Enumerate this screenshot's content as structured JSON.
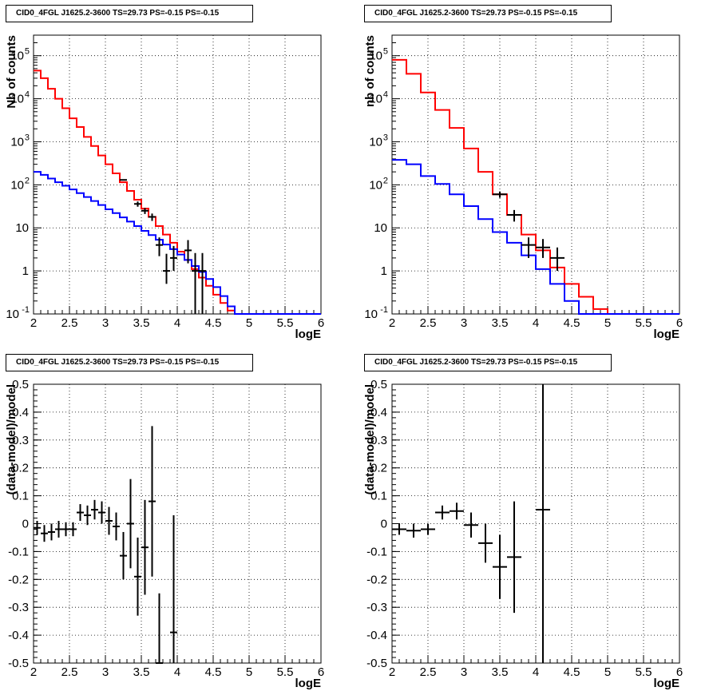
{
  "chart_data": [
    {
      "type": "line",
      "title": "CID0_4FGL J1625.2-3600 TS=29.73 PS=-0.15 PS=-0.15",
      "xlabel": "logE",
      "ylabel": "Nb of counts",
      "xlim": [
        2,
        6
      ],
      "ylim": [
        0.1,
        300000
      ],
      "yscale": "log",
      "grid": true,
      "x_ticks": [
        "2",
        "2.5",
        "3",
        "3.5",
        "4",
        "4.5",
        "5",
        "5.5",
        "6"
      ],
      "y_ticks": [
        {
          "value": 0.1,
          "base": "10",
          "exp": "-1"
        },
        {
          "value": 1,
          "base": "1",
          "exp": ""
        },
        {
          "value": 10,
          "base": "10",
          "exp": ""
        },
        {
          "value": 100,
          "base": "10",
          "exp": "2"
        },
        {
          "value": 1000,
          "base": "10",
          "exp": "3"
        },
        {
          "value": 10000,
          "base": "10",
          "exp": "4"
        },
        {
          "value": 100000,
          "base": "10",
          "exp": "5"
        }
      ],
      "series": [
        {
          "color": "#ff0000",
          "style": "step",
          "bin_edges": [
            2.0,
            2.1,
            2.2,
            2.3,
            2.4,
            2.5,
            2.6,
            2.7,
            2.8,
            2.9,
            3.0,
            3.1,
            3.2,
            3.3,
            3.4,
            3.5,
            3.6,
            3.7,
            3.8,
            3.9,
            4.0,
            4.1,
            4.2,
            4.3,
            4.4,
            4.5,
            4.6,
            4.7,
            4.8,
            4.9,
            5.0,
            5.1,
            5.2,
            5.3,
            5.4,
            5.5,
            5.6,
            5.7,
            5.8,
            5.9,
            6.0
          ],
          "values": [
            45000,
            30000,
            17000,
            10000,
            6000,
            3500,
            2200,
            1300,
            800,
            480,
            300,
            185,
            115,
            72,
            45,
            28,
            18,
            11,
            7,
            4.5,
            2.8,
            1.8,
            1.1,
            0.7,
            0.45,
            0.28,
            0.18,
            0.12,
            0.1,
            0.1,
            0.1,
            0.1,
            0.1,
            0.1,
            0.1,
            0.1,
            0.1,
            0.1,
            0.1,
            0.1
          ]
        },
        {
          "color": "#0000ff",
          "style": "step",
          "bin_edges": [
            2.0,
            2.1,
            2.2,
            2.3,
            2.4,
            2.5,
            2.6,
            2.7,
            2.8,
            2.9,
            3.0,
            3.1,
            3.2,
            3.3,
            3.4,
            3.5,
            3.6,
            3.7,
            3.8,
            3.9,
            4.0,
            4.1,
            4.2,
            4.3,
            4.4,
            4.5,
            4.6,
            4.7,
            4.8,
            4.9,
            5.0,
            5.1,
            5.2,
            5.3,
            5.4,
            5.5,
            5.6,
            5.7,
            5.8,
            5.9,
            6.0
          ],
          "values": [
            200,
            170,
            140,
            115,
            95,
            78,
            64,
            52,
            42,
            34,
            27,
            22,
            17.5,
            14,
            11,
            8.5,
            6.8,
            5.3,
            4.1,
            3.2,
            2.4,
            1.8,
            1.3,
            0.95,
            0.65,
            0.42,
            0.26,
            0.15,
            0.1,
            0.1,
            0.1,
            0.1,
            0.1,
            0.1,
            0.1,
            0.1,
            0.1,
            0.1,
            0.1,
            0.1
          ]
        },
        {
          "color": "#000000",
          "style": "errorbar",
          "points": [
            [
              3.25,
              130,
              1.3,
              1.2,
              0.05
            ],
            [
              3.45,
              36,
              5,
              5,
              0.05
            ],
            [
              3.55,
              25,
              4,
              4,
              0.05
            ],
            [
              3.65,
              18,
              3.5,
              3.5,
              0.05
            ],
            [
              3.75,
              4,
              1.8,
              2,
              0.05
            ],
            [
              3.85,
              1,
              0.5,
              1.5,
              0.05
            ],
            [
              3.95,
              2,
              1,
              1.8,
              0.05
            ],
            [
              4.15,
              3,
              1.5,
              2.2,
              0.05
            ],
            [
              4.25,
              1,
              0.9,
              1.6,
              0.05
            ],
            [
              4.35,
              1,
              0.9,
              1.6,
              0.05
            ]
          ]
        }
      ]
    },
    {
      "type": "line",
      "title": "CID0_4FGL J1625.2-3600 TS=29.73 PS=-0.15 PS=-0.15",
      "xlabel": "logE",
      "ylabel": "nb of counts",
      "xlim": [
        2,
        6
      ],
      "ylim": [
        0.1,
        300000
      ],
      "yscale": "log",
      "grid": true,
      "x_ticks": [
        "2",
        "2.5",
        "3",
        "3.5",
        "4",
        "4.5",
        "5",
        "5.5",
        "6"
      ],
      "y_ticks": [
        {
          "value": 0.1,
          "base": "10",
          "exp": "-1"
        },
        {
          "value": 1,
          "base": "1",
          "exp": ""
        },
        {
          "value": 10,
          "base": "10",
          "exp": ""
        },
        {
          "value": 100,
          "base": "10",
          "exp": "2"
        },
        {
          "value": 1000,
          "base": "10",
          "exp": "3"
        },
        {
          "value": 10000,
          "base": "10",
          "exp": "4"
        },
        {
          "value": 100000,
          "base": "10",
          "exp": "5"
        }
      ],
      "series": [
        {
          "color": "#ff0000",
          "style": "step",
          "bin_edges": [
            2.0,
            2.2,
            2.4,
            2.6,
            2.8,
            3.0,
            3.2,
            3.4,
            3.6,
            3.8,
            4.0,
            4.2,
            4.4,
            4.6,
            4.8,
            5.0,
            5.2,
            5.4,
            5.6,
            5.8,
            6.0
          ],
          "values": [
            80000,
            38000,
            14000,
            5500,
            2100,
            700,
            200,
            60,
            20,
            7,
            3,
            1.2,
            0.5,
            0.25,
            0.13,
            0.1,
            0.1,
            0.1,
            0.1,
            0.1
          ]
        },
        {
          "color": "#0000ff",
          "style": "step",
          "bin_edges": [
            2.0,
            2.2,
            2.4,
            2.6,
            2.8,
            3.0,
            3.2,
            3.4,
            3.6,
            3.8,
            4.0,
            4.2,
            4.4,
            4.6,
            4.8,
            5.0,
            5.2,
            5.4,
            5.6,
            5.8,
            6.0
          ],
          "values": [
            380,
            300,
            160,
            105,
            60,
            32,
            16,
            8,
            4.5,
            2.3,
            1.1,
            0.5,
            0.2,
            0.1,
            0.1,
            0.1,
            0.1,
            0.1,
            0.1,
            0.1
          ]
        },
        {
          "color": "#000000",
          "style": "errorbar",
          "points": [
            [
              3.5,
              60,
              10,
              10,
              0.1
            ],
            [
              3.7,
              20,
              6,
              6,
              0.1
            ],
            [
              3.9,
              4,
              2,
              2,
              0.1
            ],
            [
              4.1,
              3.5,
              1.5,
              2,
              0.1
            ],
            [
              4.3,
              2,
              1,
              1.5,
              0.1
            ]
          ]
        }
      ]
    },
    {
      "type": "scatter",
      "title": "CID0_4FGL J1625.2-3600 TS=29.73 PS=-0.15 PS=-0.15",
      "xlabel": "logE",
      "ylabel": "(data-model)/model",
      "xlim": [
        2,
        6
      ],
      "ylim": [
        -0.5,
        0.5
      ],
      "grid": true,
      "x_ticks": [
        "2",
        "2.5",
        "3",
        "3.5",
        "4",
        "4.5",
        "5",
        "5.5",
        "6"
      ],
      "y_ticks": [
        "-0.5",
        "-0.4",
        "-0.3",
        "-0.2",
        "-0.1",
        "0",
        "0.1",
        "0.2",
        "0.3",
        "0.4",
        "0.5"
      ],
      "series": [
        {
          "color": "#000000",
          "style": "errorbar",
          "points": [
            [
              2.05,
              -0.015,
              0.025,
              0.025,
              0.05
            ],
            [
              2.15,
              -0.035,
              0.03,
              0.03,
              0.05
            ],
            [
              2.25,
              -0.03,
              0.03,
              0.03,
              0.05
            ],
            [
              2.35,
              -0.02,
              0.03,
              0.03,
              0.05
            ],
            [
              2.45,
              -0.02,
              0.025,
              0.025,
              0.05
            ],
            [
              2.55,
              -0.02,
              0.025,
              0.025,
              0.05
            ],
            [
              2.65,
              0.04,
              0.03,
              0.03,
              0.05
            ],
            [
              2.75,
              0.03,
              0.035,
              0.035,
              0.05
            ],
            [
              2.85,
              0.05,
              0.035,
              0.035,
              0.05
            ],
            [
              2.95,
              0.04,
              0.04,
              0.04,
              0.05
            ],
            [
              3.05,
              0.01,
              0.05,
              0.05,
              0.05
            ],
            [
              3.15,
              -0.01,
              0.05,
              0.05,
              0.05
            ],
            [
              3.25,
              -0.115,
              0.085,
              0.085,
              0.05
            ],
            [
              3.35,
              0.0,
              0.16,
              0.16,
              0.05
            ],
            [
              3.45,
              -0.19,
              0.14,
              0.14,
              0.05
            ],
            [
              3.55,
              -0.085,
              0.17,
              0.17,
              0.05
            ],
            [
              3.65,
              0.08,
              0.27,
              0.27,
              0.05
            ],
            [
              3.75,
              -0.5,
              0.25,
              0.25,
              0.05
            ],
            [
              3.95,
              -0.39,
              0.42,
              0.42,
              0.05
            ]
          ]
        }
      ]
    },
    {
      "type": "scatter",
      "title": "CID0_4FGL J1625.2-3600 TS=29.73 PS=-0.15 PS=-0.15",
      "xlabel": "logE",
      "ylabel": "(data-model)/model",
      "xlim": [
        2,
        6
      ],
      "ylim": [
        -0.5,
        0.5
      ],
      "grid": true,
      "x_ticks": [
        "2",
        "2.5",
        "3",
        "3.5",
        "4",
        "4.5",
        "5",
        "5.5",
        "6"
      ],
      "y_ticks": [
        "-0.5",
        "-0.4",
        "-0.3",
        "-0.2",
        "-0.1",
        "0",
        "0.1",
        "0.2",
        "0.3",
        "0.4",
        "0.5"
      ],
      "series": [
        {
          "color": "#000000",
          "style": "errorbar",
          "points": [
            [
              2.1,
              -0.02,
              0.02,
              0.02,
              0.1
            ],
            [
              2.3,
              -0.025,
              0.025,
              0.025,
              0.1
            ],
            [
              2.5,
              -0.02,
              0.02,
              0.02,
              0.1
            ],
            [
              2.7,
              0.04,
              0.025,
              0.025,
              0.1
            ],
            [
              2.9,
              0.045,
              0.03,
              0.03,
              0.1
            ],
            [
              3.1,
              -0.005,
              0.045,
              0.045,
              0.1
            ],
            [
              3.3,
              -0.07,
              0.07,
              0.07,
              0.1
            ],
            [
              3.5,
              -0.155,
              0.115,
              0.115,
              0.1
            ],
            [
              3.7,
              -0.12,
              0.2,
              0.2,
              0.1
            ],
            [
              4.1,
              0.05,
              0.55,
              0.55,
              0.1
            ]
          ]
        }
      ]
    }
  ]
}
